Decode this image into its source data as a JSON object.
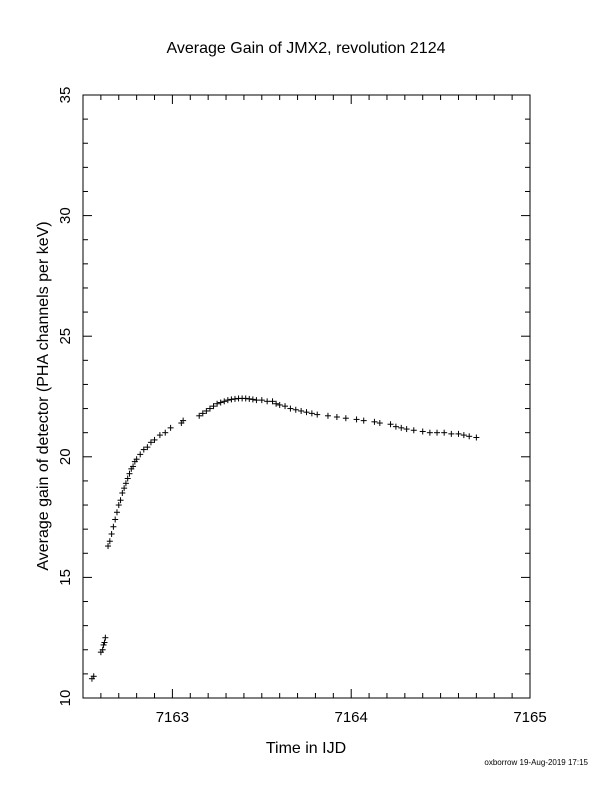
{
  "chart_data": {
    "type": "scatter",
    "title": "Average Gain of JMX2, revolution 2124",
    "xlabel": "Time in IJD",
    "ylabel": "Average gain of detector (PHA channels per keV)",
    "xlim": [
      7162.5,
      7165
    ],
    "ylim": [
      10,
      35
    ],
    "xticks": [
      7163,
      7164,
      7165
    ],
    "xtick_labels": [
      "7163",
      "7164",
      "7165"
    ],
    "yticks": [
      10,
      15,
      20,
      25,
      30,
      35
    ],
    "ytick_labels": [
      "10",
      "15",
      "20",
      "25",
      "30",
      "35"
    ],
    "marker": "plus",
    "grid": false,
    "series": [
      {
        "x": [
          7162.55,
          7162.56,
          7162.6,
          7162.61,
          7162.615,
          7162.62,
          7162.625,
          7162.64,
          7162.65,
          7162.66,
          7162.67,
          7162.68,
          7162.69,
          7162.7,
          7162.71,
          7162.72,
          7162.73,
          7162.74,
          7162.75,
          7162.76,
          7162.77,
          7162.78,
          7162.79,
          7162.8,
          7162.82,
          7162.84,
          7162.86,
          7162.88,
          7162.9,
          7162.93,
          7162.96,
          7162.99,
          7163.05,
          7163.06,
          7163.15,
          7163.17,
          7163.19,
          7163.21,
          7163.23,
          7163.25,
          7163.27,
          7163.29,
          7163.31,
          7163.33,
          7163.35,
          7163.37,
          7163.39,
          7163.41,
          7163.43,
          7163.45,
          7163.47,
          7163.5,
          7163.53,
          7163.56,
          7163.58,
          7163.6,
          7163.63,
          7163.66,
          7163.69,
          7163.72,
          7163.75,
          7163.78,
          7163.81,
          7163.87,
          7163.92,
          7163.97,
          7164.03,
          7164.07,
          7164.13,
          7164.16,
          7164.22,
          7164.25,
          7164.28,
          7164.31,
          7164.35,
          7164.4,
          7164.44,
          7164.48,
          7164.52,
          7164.56,
          7164.6,
          7164.63,
          7164.66,
          7164.7
        ],
        "y": [
          10.8,
          10.9,
          11.9,
          12.0,
          12.2,
          12.3,
          12.5,
          16.3,
          16.5,
          16.8,
          17.1,
          17.4,
          17.7,
          18.0,
          18.2,
          18.5,
          18.7,
          18.9,
          19.1,
          19.3,
          19.5,
          19.6,
          19.8,
          19.9,
          20.1,
          20.3,
          20.4,
          20.6,
          20.7,
          20.9,
          21.0,
          21.2,
          21.4,
          21.5,
          21.7,
          21.8,
          21.9,
          22.0,
          22.1,
          22.2,
          22.25,
          22.3,
          22.35,
          22.38,
          22.4,
          22.42,
          22.42,
          22.42,
          22.4,
          22.38,
          22.35,
          22.35,
          22.3,
          22.3,
          22.2,
          22.15,
          22.1,
          22.0,
          21.95,
          21.9,
          21.85,
          21.8,
          21.75,
          21.7,
          21.65,
          21.6,
          21.55,
          21.5,
          21.45,
          21.4,
          21.35,
          21.25,
          21.2,
          21.15,
          21.1,
          21.05,
          21.0,
          21.0,
          21.0,
          20.95,
          20.95,
          20.9,
          20.85,
          20.8
        ]
      }
    ]
  },
  "credit": "oxborrow 19-Aug-2019 17:15"
}
